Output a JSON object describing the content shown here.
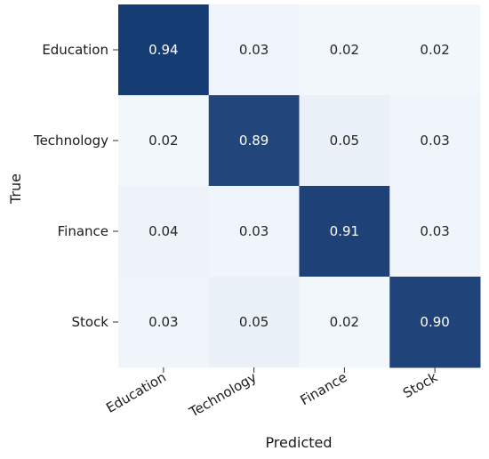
{
  "chart_data": {
    "type": "heatmap",
    "title": "",
    "xlabel": "Predicted",
    "ylabel": "True",
    "x_categories": [
      "Education",
      "Technology",
      "Finance",
      "Stock"
    ],
    "y_categories": [
      "Education",
      "Technology",
      "Finance",
      "Stock"
    ],
    "values": [
      [
        0.94,
        0.03,
        0.02,
        0.02
      ],
      [
        0.02,
        0.89,
        0.05,
        0.03
      ],
      [
        0.04,
        0.03,
        0.91,
        0.03
      ],
      [
        0.03,
        0.05,
        0.02,
        0.9
      ]
    ],
    "value_labels": [
      [
        "0.94",
        "0.03",
        "0.02",
        "0.02"
      ],
      [
        "0.02",
        "0.89",
        "0.05",
        "0.03"
      ],
      [
        "0.04",
        "0.03",
        "0.91",
        "0.03"
      ],
      [
        "0.03",
        "0.05",
        "0.02",
        "0.90"
      ]
    ],
    "value_range": [
      0,
      1
    ],
    "colormap": {
      "low": "#f7fbff",
      "high": "#08306b"
    },
    "grid": false,
    "legend": "none"
  }
}
